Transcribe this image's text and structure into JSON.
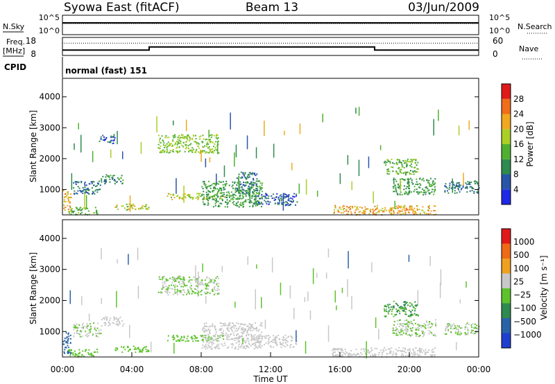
{
  "header": {
    "title": "Syowa East (fitACF)",
    "beam": "Beam 13",
    "date": "03/Jun/2009"
  },
  "strips": {
    "nsky_label": "N.Sky",
    "nsearch_label": "N.Search",
    "nsky_ticks": [
      "10^5",
      "10^0"
    ],
    "nsearch_ticks": [
      "10^5",
      "10^0"
    ],
    "freq_label_1": "Freq.",
    "freq_label_2": "[MHz]",
    "freq_ticks": [
      "18",
      "8"
    ],
    "nave_label": "Nave",
    "nave_ticks": [
      "60",
      "0"
    ],
    "cpid_label": "CPID",
    "cpid_value": "normal (fast) 151"
  },
  "axes": {
    "ylabel": "Slant Range [km]",
    "xlabel": "Time UT",
    "y_ticks": [
      "4000",
      "3000",
      "2000",
      "1000"
    ],
    "x_ticks": [
      "00:00",
      "04:00",
      "08:00",
      "12:00",
      "16:00",
      "20:00",
      "00:00"
    ]
  },
  "colorbars": {
    "power": {
      "label": "Power [dB]",
      "ticks": [
        "28",
        "24",
        "20",
        "16",
        "12",
        "8",
        "4"
      ],
      "colors": [
        "#1e28e6",
        "#2855a8",
        "#2e8a4e",
        "#4fb030",
        "#aacf25",
        "#f0a820",
        "#ef6d1b",
        "#e01a1a"
      ]
    },
    "velocity": {
      "label": "Velocity [m s⁻¹]",
      "ticks": [
        "1000",
        "500",
        "100",
        "25",
        "−25",
        "−100",
        "−500",
        "−1000"
      ],
      "colors": [
        "#1f3fcf",
        "#2a62a8",
        "#2e8a4e",
        "#5dc22c",
        "#c8c8c8",
        "#f0a020",
        "#ee6a16",
        "#e01a1a"
      ]
    }
  },
  "chart_data": [
    {
      "type": "line",
      "name": "N.Sky / N.Search",
      "x_range": [
        0,
        24
      ],
      "note_level": "near 10^5 throughout",
      "values": [
        {
          "x": 0,
          "y": 80000
        },
        {
          "x": 24,
          "y": 80000
        }
      ]
    },
    {
      "type": "line",
      "name": "Freq. / Nave",
      "x_range": [
        0,
        24
      ],
      "freq_series": [
        {
          "x": 0,
          "y": 11
        },
        {
          "x": 5,
          "y": 11
        },
        {
          "x": 5,
          "y": 12.7
        },
        {
          "x": 18,
          "y": 12.7
        },
        {
          "x": 18,
          "y": 11
        },
        {
          "x": 24,
          "y": 11
        }
      ],
      "nave_series": [
        {
          "x": 0,
          "y": 41
        },
        {
          "x": 24,
          "y": 41
        }
      ],
      "freq_range": [
        8,
        18
      ],
      "nave_range": [
        0,
        60
      ]
    },
    {
      "type": "heatmap",
      "name": "Power",
      "x_range": [
        0,
        24
      ],
      "y_range": [
        180,
        4600
      ],
      "x_unit": "hours UT",
      "y_unit": "km",
      "color_range": [
        0,
        32
      ],
      "blobs": [
        {
          "x0": 0,
          "x1": 0.5,
          "y0": 300,
          "y1": 1000,
          "v": 22
        },
        {
          "x0": 0.6,
          "x1": 2.2,
          "y0": 850,
          "y1": 1300,
          "v": 8
        },
        {
          "x0": 0.3,
          "x1": 2.0,
          "y0": 200,
          "y1": 450,
          "v": 14
        },
        {
          "x0": 2.1,
          "x1": 3.0,
          "y0": 2500,
          "y1": 2800,
          "v": 6
        },
        {
          "x0": 2.2,
          "x1": 3.5,
          "y0": 1200,
          "y1": 1500,
          "v": 10
        },
        {
          "x0": 3.0,
          "x1": 5.0,
          "y0": 350,
          "y1": 550,
          "v": 18
        },
        {
          "x0": 5.5,
          "x1": 9.0,
          "y0": 2200,
          "y1": 2800,
          "v": 16
        },
        {
          "x0": 6.0,
          "x1": 9.3,
          "y0": 700,
          "y1": 900,
          "v": 18
        },
        {
          "x0": 8.0,
          "x1": 11.5,
          "y0": 450,
          "y1": 1300,
          "v": 12
        },
        {
          "x0": 10.0,
          "x1": 11.2,
          "y0": 900,
          "y1": 1600,
          "v": 8
        },
        {
          "x0": 11.0,
          "x1": 13.5,
          "y0": 500,
          "y1": 900,
          "v": 6
        },
        {
          "x0": 15.5,
          "x1": 21.5,
          "y0": 200,
          "y1": 500,
          "v": 22
        },
        {
          "x0": 18.5,
          "x1": 20.5,
          "y0": 1500,
          "y1": 2000,
          "v": 14
        },
        {
          "x0": 19.0,
          "x1": 21.5,
          "y0": 850,
          "y1": 1400,
          "v": 12
        },
        {
          "x0": 22.0,
          "x1": 24.0,
          "y0": 900,
          "y1": 1300,
          "v": 8
        }
      ]
    },
    {
      "type": "heatmap",
      "name": "Velocity",
      "x_range": [
        0,
        24
      ],
      "y_range": [
        180,
        4600
      ],
      "x_unit": "hours UT",
      "y_unit": "km",
      "color_range": [
        -1000,
        1000
      ],
      "blobs": [
        {
          "x0": 0,
          "x1": 0.5,
          "y0": 300,
          "y1": 1000,
          "v": -600
        },
        {
          "x0": 0.6,
          "x1": 2.2,
          "y0": 850,
          "y1": 1300,
          "v": 0
        },
        {
          "x0": 0.3,
          "x1": 2.0,
          "y0": 200,
          "y1": 450,
          "v": -150
        },
        {
          "x0": 2.2,
          "x1": 3.5,
          "y0": 1200,
          "y1": 1500,
          "v": 60
        },
        {
          "x0": 3.0,
          "x1": 5.0,
          "y0": 350,
          "y1": 550,
          "v": -150
        },
        {
          "x0": 5.5,
          "x1": 9.0,
          "y0": 2200,
          "y1": 2800,
          "v": 0
        },
        {
          "x0": 6.0,
          "x1": 9.3,
          "y0": 700,
          "y1": 900,
          "v": -150
        },
        {
          "x0": 8.0,
          "x1": 11.5,
          "y0": 450,
          "y1": 1300,
          "v": 60
        },
        {
          "x0": 11.0,
          "x1": 13.5,
          "y0": 500,
          "y1": 900,
          "v": 60
        },
        {
          "x0": 15.5,
          "x1": 21.5,
          "y0": 200,
          "y1": 500,
          "v": 150
        },
        {
          "x0": 18.5,
          "x1": 20.5,
          "y0": 1500,
          "y1": 2000,
          "v": -250
        },
        {
          "x0": 19.0,
          "x1": 21.5,
          "y0": 850,
          "y1": 1400,
          "v": 0
        },
        {
          "x0": 22.0,
          "x1": 24.0,
          "y0": 900,
          "y1": 1300,
          "v": 0
        }
      ]
    }
  ]
}
